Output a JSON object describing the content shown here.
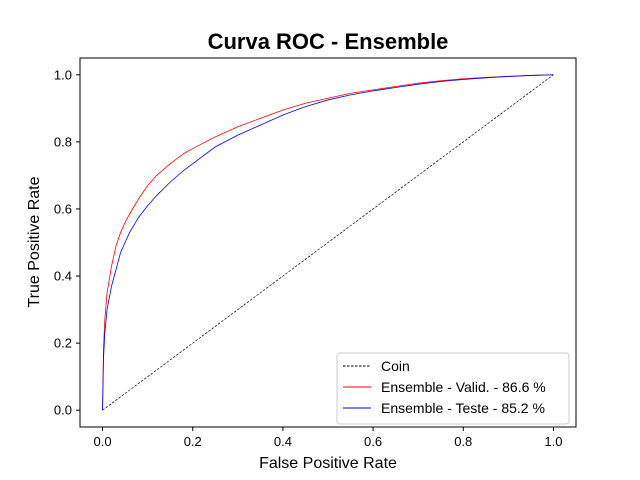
{
  "chart_data": {
    "type": "line",
    "title": "Curva ROC - Ensemble",
    "xlabel": "False Positive Rate",
    "ylabel": "True Positive Rate",
    "xlim": [
      -0.05,
      1.05
    ],
    "ylim": [
      -0.05,
      1.05
    ],
    "xticks": [
      "0.0",
      "0.2",
      "0.4",
      "0.6",
      "0.8",
      "1.0"
    ],
    "yticks": [
      "0.0",
      "0.2",
      "0.4",
      "0.6",
      "0.8",
      "1.0"
    ],
    "grid": false,
    "legend_position": "lower-right",
    "series": [
      {
        "name": "Coin",
        "color": "#000000",
        "style": "dashed",
        "x": [
          0,
          1
        ],
        "y": [
          0,
          1
        ]
      },
      {
        "name": "Ensemble - Valid. - 86.6 %",
        "color": "#ff0000",
        "style": "solid",
        "x": [
          0,
          0.002,
          0.005,
          0.01,
          0.02,
          0.03,
          0.04,
          0.05,
          0.06,
          0.08,
          0.1,
          0.12,
          0.15,
          0.18,
          0.2,
          0.25,
          0.3,
          0.35,
          0.4,
          0.45,
          0.5,
          0.55,
          0.6,
          0.65,
          0.7,
          0.75,
          0.8,
          0.85,
          0.9,
          0.95,
          1.0
        ],
        "y": [
          0,
          0.18,
          0.27,
          0.35,
          0.43,
          0.49,
          0.53,
          0.56,
          0.585,
          0.63,
          0.67,
          0.7,
          0.735,
          0.765,
          0.78,
          0.815,
          0.845,
          0.87,
          0.895,
          0.915,
          0.93,
          0.945,
          0.955,
          0.965,
          0.975,
          0.982,
          0.988,
          0.992,
          0.995,
          0.998,
          1.0
        ]
      },
      {
        "name": "Ensemble - Teste - 85.2 %",
        "color": "#0000ff",
        "style": "solid",
        "x": [
          0,
          0.002,
          0.005,
          0.01,
          0.02,
          0.03,
          0.04,
          0.05,
          0.06,
          0.08,
          0.1,
          0.12,
          0.15,
          0.18,
          0.2,
          0.25,
          0.3,
          0.35,
          0.4,
          0.45,
          0.5,
          0.55,
          0.6,
          0.65,
          0.7,
          0.75,
          0.8,
          0.85,
          0.9,
          0.95,
          1.0
        ],
        "y": [
          0,
          0.15,
          0.23,
          0.3,
          0.37,
          0.42,
          0.47,
          0.5,
          0.53,
          0.575,
          0.61,
          0.64,
          0.68,
          0.715,
          0.735,
          0.785,
          0.82,
          0.85,
          0.88,
          0.905,
          0.925,
          0.94,
          0.952,
          0.962,
          0.972,
          0.98,
          0.986,
          0.991,
          0.995,
          0.998,
          1.0
        ]
      }
    ]
  }
}
